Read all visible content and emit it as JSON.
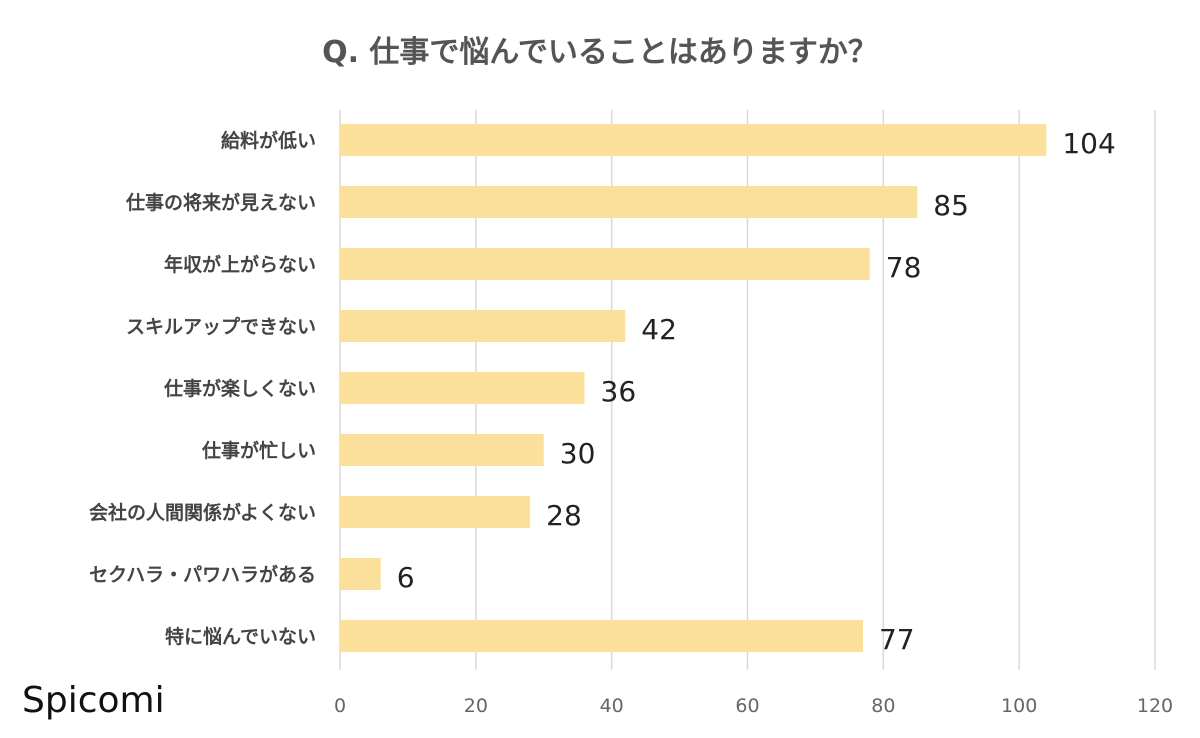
{
  "brand": "Spicomi",
  "chart_data": {
    "type": "bar",
    "orientation": "horizontal",
    "title": "Q. 仕事で悩んでいることはありますか？",
    "xlabel": "",
    "ylabel": "",
    "categories": [
      "給料が低い",
      "仕事の将来が見えない",
      "年収が上がらない",
      "スキルアップできない",
      "仕事が楽しくない",
      "仕事が忙しい",
      "会社の人間関係がよくない",
      "セクハラ・パワハラがある",
      "特に悩んでいない"
    ],
    "values": [
      104,
      85,
      78,
      42,
      36,
      30,
      28,
      6,
      77
    ],
    "xlim": [
      0,
      120
    ],
    "ticks": [
      0,
      20,
      40,
      60,
      80,
      100,
      120
    ],
    "grid": true,
    "legend": "none",
    "bar_color": "#fbe09c"
  }
}
